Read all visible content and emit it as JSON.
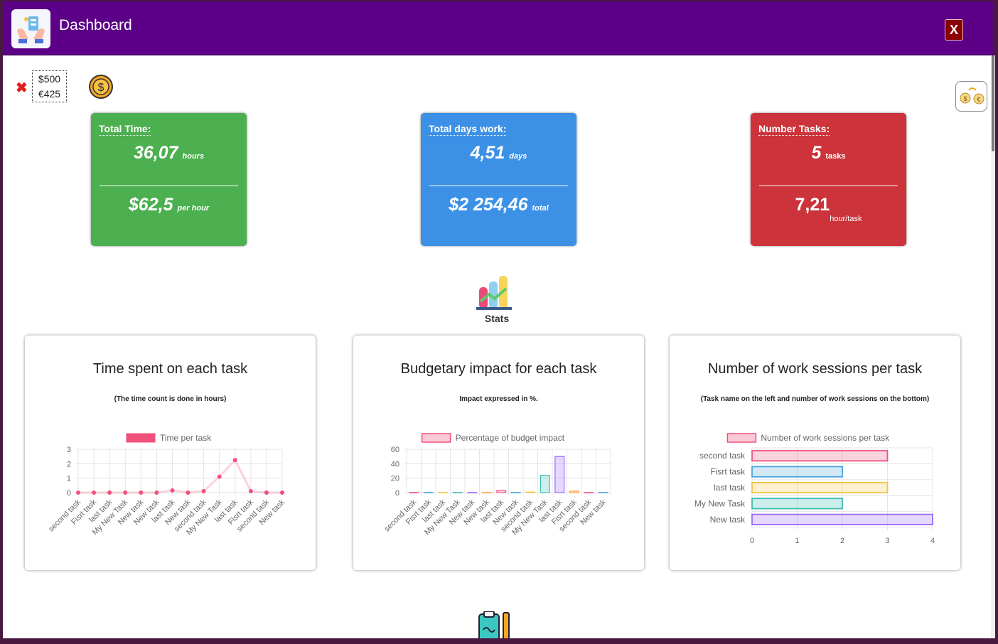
{
  "window": {
    "title": "Dashboard",
    "close_label": "X"
  },
  "currency": {
    "remove_icon": "✖",
    "usd": "$500",
    "eur": "€425",
    "coin_icon": "dollar-coin-icon",
    "exchange_icon": "currency-exchange-icon"
  },
  "cards": {
    "time": {
      "label": "Total Time:",
      "value": "36,07",
      "unit": "hours",
      "rate": "$62,5",
      "rate_unit": "per hour",
      "color": "#4caf50"
    },
    "days": {
      "label": "Total days work:",
      "value": "4,51",
      "unit": "days",
      "total": "$2 254,46",
      "total_unit": "total",
      "color": "#3c91e6"
    },
    "tasks": {
      "label": "Number Tasks:",
      "value": "5",
      "unit": "tasks",
      "per": "7,21",
      "per_unit": "hour/task",
      "color": "#cc333a"
    }
  },
  "stats": {
    "label": "Stats"
  },
  "chart_data": [
    {
      "type": "line",
      "title": "Time spent on each task",
      "subtitle": "(The time count is done in hours)",
      "legend": "Time per task",
      "categories": [
        "second task",
        "Fisrt task",
        "last task",
        "My New Task",
        "New task",
        "New task",
        "last task",
        "New task",
        "second task",
        "My New Task",
        "last task",
        "Fisrt task",
        "second task",
        "New task"
      ],
      "values": [
        0,
        0,
        0,
        0,
        0,
        0,
        0.15,
        0,
        0.1,
        1.1,
        2.25,
        0.1,
        0,
        0
      ],
      "ylim": [
        0,
        3
      ],
      "yticks": [
        "0",
        "1",
        "2",
        "3"
      ],
      "color": "#f0507a"
    },
    {
      "type": "bar",
      "title": "Budgetary impact for each task",
      "subtitle": "Impact expressed in %.",
      "legend": "Percentage of budget impact",
      "categories": [
        "second task",
        "Fisrt task",
        "last task",
        "My New Task",
        "New task",
        "New task",
        "last task",
        "New task",
        "second task",
        "My New Task",
        "last task",
        "Fisrt task",
        "second task",
        "New task"
      ],
      "values": [
        0.1,
        0.1,
        0.1,
        0.1,
        0.1,
        0.1,
        3,
        0.1,
        0.8,
        24,
        50,
        2,
        0.1,
        0.1
      ],
      "ylim": [
        0,
        60
      ],
      "yticks": [
        "0",
        "20",
        "40",
        "60"
      ],
      "colors": [
        "#f0507a",
        "#4aa3e0",
        "#f5c242",
        "#3cbcb0",
        "#9a66ff",
        "#ff9f40",
        "#f0507a",
        "#4aa3e0",
        "#f5c242",
        "#3cbcb0",
        "#9a66ff",
        "#ff9f40",
        "#f0507a",
        "#4aa3e0"
      ]
    },
    {
      "type": "bar",
      "orientation": "horizontal",
      "title": "Number of work sessions per task",
      "subtitle": "(Task name on the left and number of work sessions on the bottom)",
      "legend": "Number of work sessions per task",
      "categories": [
        "second task",
        "Fisrt task",
        "last task",
        "My New Task",
        "New task"
      ],
      "values": [
        3,
        2,
        3,
        2,
        4
      ],
      "xlim": [
        0,
        4
      ],
      "xticks": [
        "0",
        "1",
        "2",
        "3",
        "4"
      ],
      "colors": [
        "#f0507a",
        "#4aa3e0",
        "#f5c242",
        "#3cbcb0",
        "#9a66ff"
      ]
    }
  ]
}
